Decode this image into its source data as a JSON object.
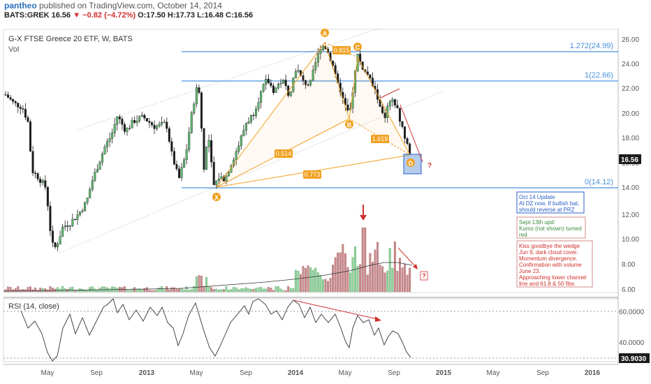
{
  "header": {
    "user": "pantheo",
    "published_text": " published on TradingView.com, October 14, 2014",
    "symbol": "BATS:GREK",
    "last": "16.56",
    "change": "▼ −0.82 (−4.72%)",
    "ohlc": "O:17.50 H:17.73 L:16.48 C:16.56"
  },
  "chart_data": {
    "type": "candlestick",
    "title": "G-X FTSE Greece 20 ETF, W, BATS",
    "volume_label": "Vol",
    "rsi_label": "RSI (14, close)",
    "x_ticks": [
      "May",
      "Sep",
      "2013",
      "May",
      "Sep",
      "2014",
      "May",
      "Sep",
      "2015",
      "May",
      "Sep",
      "2016"
    ],
    "y_ticks": [
      "26.00",
      "24.00",
      "22.00",
      "20.00",
      "18.00",
      "16.00",
      "14.00",
      "12.00",
      "10.00",
      "8.00",
      "6.00"
    ],
    "ylim": [
      6,
      26.5
    ],
    "rsi_ticks": [
      "60.0000",
      "40.0000"
    ],
    "rsi_last": "30.9030",
    "last_price": "16.56",
    "fib_levels": [
      {
        "label": "1.272(24.99)",
        "value": 24.99
      },
      {
        "label": "1(22.66)",
        "value": 22.66
      },
      {
        "label": "0(14.12)",
        "value": 14.12
      }
    ],
    "pattern_points": [
      {
        "label": "X",
        "value": 14.0
      },
      {
        "label": "A",
        "value": 25.8
      },
      {
        "label": "B",
        "value": 19.8
      },
      {
        "label": "C",
        "value": 25.0
      },
      {
        "label": "D",
        "value": 16.6
      }
    ],
    "ratios": [
      "0.815",
      "0.514",
      "1.619",
      "0.773"
    ],
    "question_marks": [
      "?",
      "?"
    ]
  },
  "annotations": {
    "oct14": [
      "Oct 14 Update",
      "At DZ now. If bullish bat,",
      "should reverse at PRZ"
    ],
    "sept13": [
      "Sept 13th upd:",
      "Kumo (not shown) turned",
      "red"
    ],
    "kiss": [
      "Kiss goodbye the wedge",
      "Jun 9, dark cloud cover.",
      "Momentum divergence.",
      "Confirmation with volume",
      "June 23.",
      "Approaching lower channel",
      "line and 61.8 & 50 fibs"
    ]
  },
  "colors": {
    "bull": "#5dbb6f",
    "bear": "#1c1c1c",
    "vol_up": "#8fd19a",
    "vol_down": "#c9888a",
    "fib": "#4a90d9",
    "pattern": "#f0a020",
    "annotation_red": "#d0302c",
    "annotation_green": "#3a8a3a",
    "annotation_blue": "#2a5fc8"
  }
}
